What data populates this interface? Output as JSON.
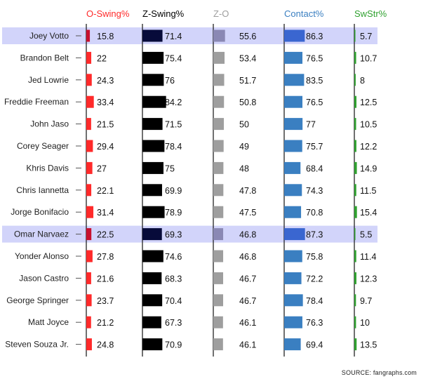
{
  "chart_data": {
    "type": "bar",
    "source": "SOURCE: fangraphs.com",
    "players": [
      "Joey Votto",
      "Brandon Belt",
      "Jed Lowrie",
      "Freddie Freeman",
      "John Jaso",
      "Corey Seager",
      "Khris Davis",
      "Chris Iannetta",
      "Jorge Bonifacio",
      "Omar Narvaez",
      "Yonder Alonso",
      "Jason Castro",
      "George Springer",
      "Matt Joyce",
      "Steven Souza Jr."
    ],
    "highlighted_players": [
      "Joey Votto",
      "Omar Narvaez"
    ],
    "highlight_color": "#d2d4fa",
    "series": [
      {
        "name": "O-Swing%",
        "color": "#ff2a2a",
        "highlight_color": "#c8102e",
        "values": [
          15.8,
          22,
          24.3,
          33.4,
          21.5,
          29.4,
          27,
          22.1,
          31.4,
          22.5,
          27.8,
          21.6,
          23.7,
          21.2,
          24.8
        ]
      },
      {
        "name": "Z-Swing%",
        "color": "#000000",
        "highlight_color": "#070b3a",
        "values": [
          71.4,
          75.4,
          76,
          84.2,
          71.5,
          78.4,
          75,
          69.9,
          78.9,
          69.3,
          74.6,
          68.3,
          70.4,
          67.3,
          70.9
        ]
      },
      {
        "name": "Z-O",
        "color": "#9e9e9e",
        "highlight_color": "#8a88b4",
        "values": [
          55.6,
          53.4,
          51.7,
          50.8,
          50,
          49,
          48,
          47.8,
          47.5,
          46.8,
          46.8,
          46.7,
          46.7,
          46.1,
          46.1
        ]
      },
      {
        "name": "Contact%",
        "color": "#3a7fc1",
        "highlight_color": "#3a66d0",
        "values": [
          86.3,
          76.5,
          83.5,
          76.5,
          77,
          75.7,
          68.4,
          74.3,
          70.8,
          87.3,
          75.8,
          72.2,
          78.4,
          76.3,
          69.4
        ]
      },
      {
        "name": "SwStr%",
        "color": "#2fa12f",
        "highlight_color": "#2fa12f",
        "values": [
          5.7,
          10.7,
          8,
          12.5,
          10.5,
          12.2,
          14.9,
          11.5,
          15.4,
          5.5,
          11.4,
          12.3,
          9.7,
          10,
          13.5
        ]
      }
    ]
  }
}
